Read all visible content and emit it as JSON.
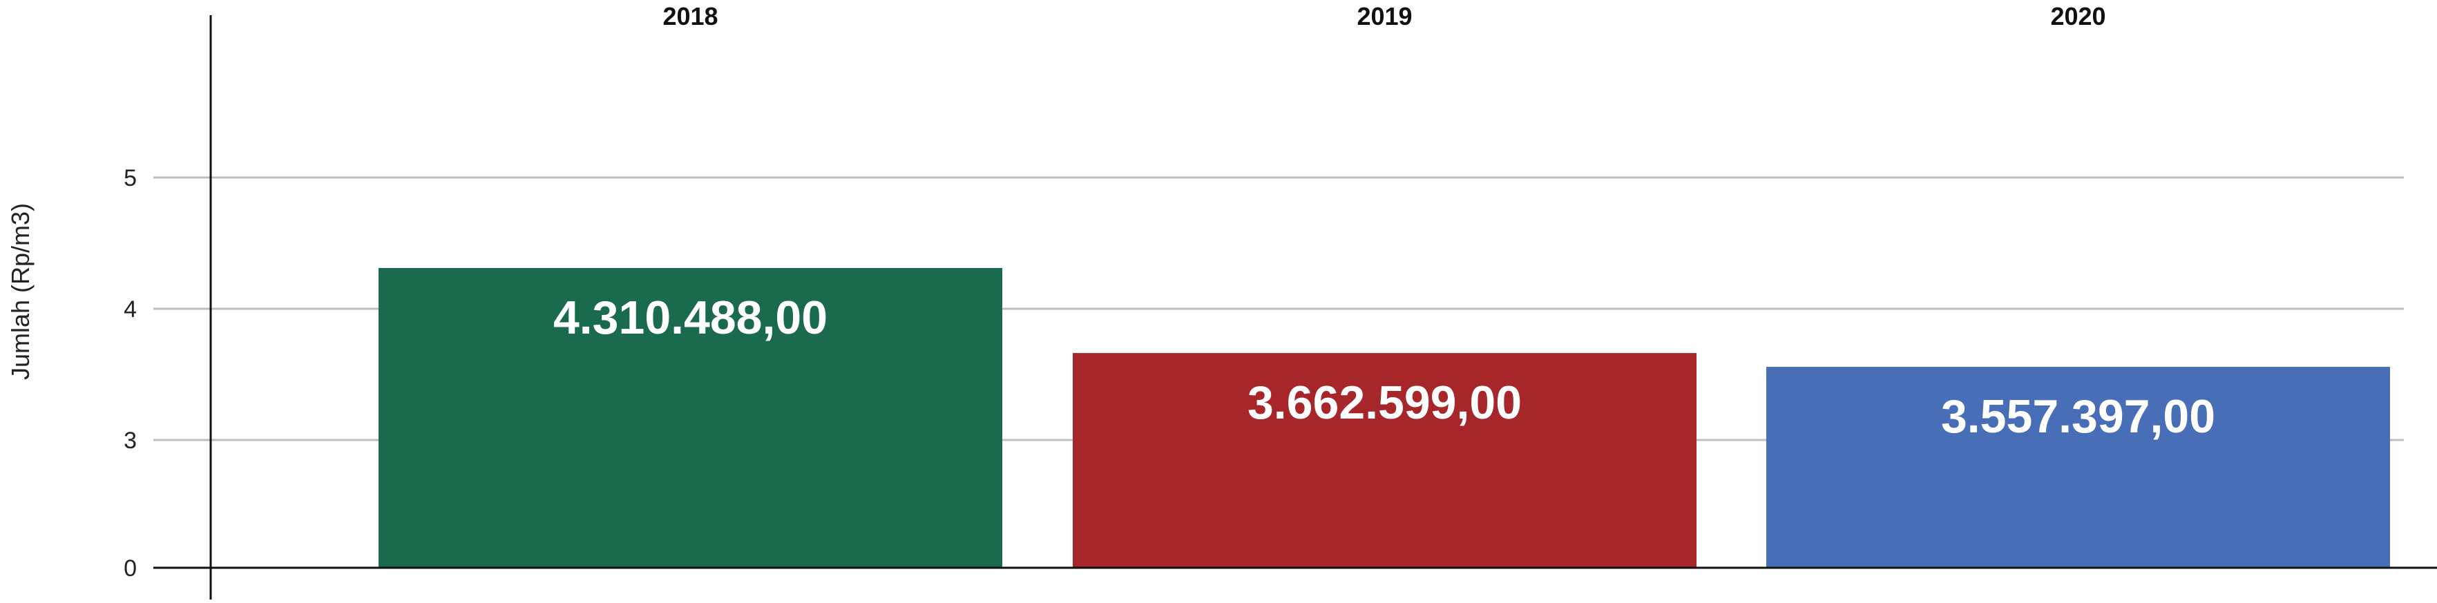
{
  "chart_data": {
    "type": "bar",
    "categories": [
      "2018",
      "2019",
      "2020"
    ],
    "values": [
      4.310488,
      3.662599,
      3.557397
    ],
    "data_labels": [
      "4.310.488,00",
      "3.662.599,00",
      "3.557.397,00"
    ],
    "colors": [
      "#1a6b4e",
      "#a6262a",
      "#486eb8"
    ],
    "ylabel": "Jumlah (Rp/m3)",
    "xlabel": "",
    "y_ticks": [
      {
        "label": "0",
        "value": 0
      },
      {
        "label": "3",
        "value": 3
      },
      {
        "label": "4",
        "value": 4
      },
      {
        "label": "5",
        "value": 5
      }
    ],
    "grid": true,
    "category_labels_position": "top"
  }
}
